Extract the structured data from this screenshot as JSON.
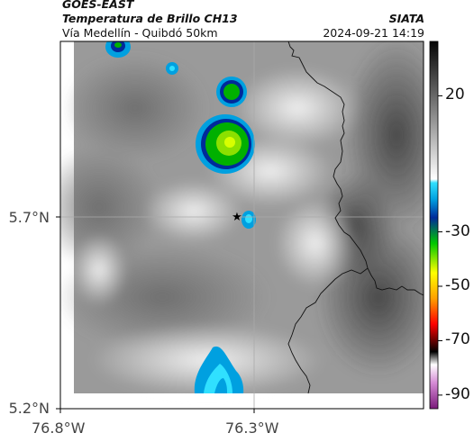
{
  "header": {
    "satellite": "GOES-EAST",
    "product": "Temperatura de Brillo CH13",
    "region": "Vía Medellín - Quibdó 50km",
    "institution": "SIATA",
    "datetime": "2024-09-21 14:19"
  },
  "map": {
    "lon_labels": [
      {
        "value": -76.8,
        "text": "76.8°W"
      },
      {
        "value": -76.3,
        "text": "76.3°W"
      }
    ],
    "lat_labels": [
      {
        "value": 5.7,
        "text": "5.7°N"
      },
      {
        "value": 5.2,
        "text": "5.2°N"
      }
    ],
    "gridline_lon": -76.3,
    "gridline_lat": 5.7,
    "marker": {
      "symbol": "★",
      "name": "location-star-marker"
    }
  },
  "colorbar": {
    "ticks": [
      {
        "value": 20,
        "text": "20"
      },
      {
        "value": -30,
        "text": "-30"
      },
      {
        "value": -50,
        "text": "-50"
      },
      {
        "value": -70,
        "text": "-70"
      },
      {
        "value": -90,
        "text": "-90"
      }
    ],
    "vmin": -95,
    "vmax": 40
  }
}
